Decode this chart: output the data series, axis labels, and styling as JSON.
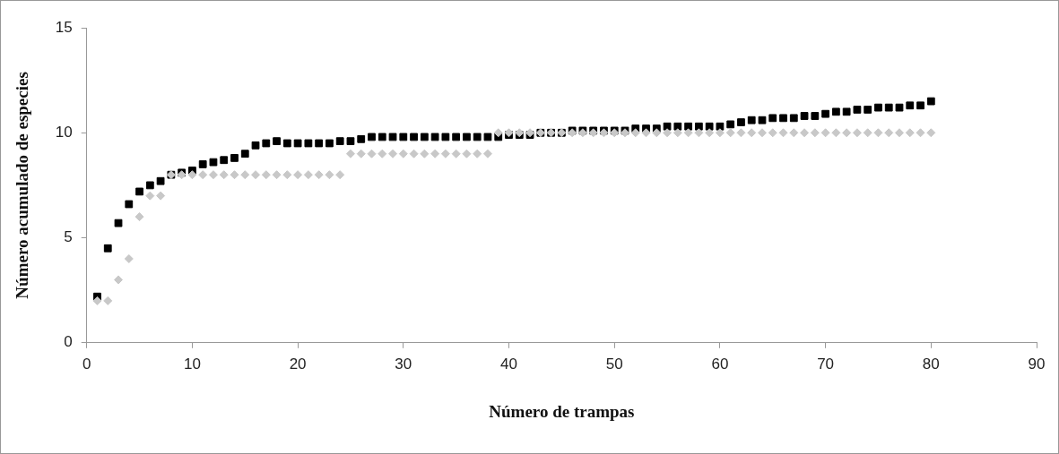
{
  "chart_data": {
    "type": "scatter",
    "xlabel": "Número de trampas",
    "ylabel": "Número acumulado de especies",
    "x": [
      1,
      2,
      3,
      4,
      5,
      6,
      7,
      8,
      9,
      10,
      11,
      12,
      13,
      14,
      15,
      16,
      17,
      18,
      19,
      20,
      21,
      22,
      23,
      24,
      25,
      26,
      27,
      28,
      29,
      30,
      31,
      32,
      33,
      34,
      35,
      36,
      37,
      38,
      39,
      40,
      41,
      42,
      43,
      44,
      45,
      46,
      47,
      48,
      49,
      50,
      51,
      52,
      53,
      54,
      55,
      56,
      57,
      58,
      59,
      60,
      61,
      62,
      63,
      64,
      65,
      66,
      67,
      68,
      69,
      70,
      71,
      72,
      73,
      74,
      75,
      76,
      77,
      78,
      79,
      80
    ],
    "series": [
      {
        "color": "#c8c8c8",
        "marker": "diamond",
        "values": [
          2,
          2,
          3,
          4,
          6,
          7,
          7,
          8,
          8,
          8,
          8,
          8,
          8,
          8,
          8,
          8,
          8,
          8,
          8,
          8,
          8,
          8,
          8,
          8,
          9,
          9,
          9,
          9,
          9,
          9,
          9,
          9,
          9,
          9,
          9,
          9,
          9,
          9,
          10,
          10,
          10,
          10,
          10,
          10,
          10,
          10,
          10,
          10,
          10,
          10,
          10,
          10,
          10,
          10,
          10,
          10,
          10,
          10,
          10,
          10,
          10,
          10,
          10,
          10,
          10,
          10,
          10,
          10,
          10,
          10,
          10,
          10,
          10,
          10,
          10,
          10,
          10,
          10,
          10,
          10
        ]
      },
      {
        "color": "#000000",
        "marker": "square",
        "values": [
          2.2,
          4.5,
          5.7,
          6.6,
          7.2,
          7.5,
          7.7,
          8.0,
          8.1,
          8.2,
          8.5,
          8.6,
          8.7,
          8.8,
          9.0,
          9.4,
          9.5,
          9.6,
          9.5,
          9.5,
          9.5,
          9.5,
          9.5,
          9.6,
          9.6,
          9.7,
          9.8,
          9.8,
          9.8,
          9.8,
          9.8,
          9.8,
          9.8,
          9.8,
          9.8,
          9.8,
          9.8,
          9.8,
          9.8,
          9.9,
          9.9,
          9.9,
          10.0,
          10.0,
          10.0,
          10.1,
          10.1,
          10.1,
          10.1,
          10.1,
          10.1,
          10.2,
          10.2,
          10.2,
          10.3,
          10.3,
          10.3,
          10.3,
          10.3,
          10.3,
          10.4,
          10.5,
          10.6,
          10.6,
          10.7,
          10.7,
          10.7,
          10.8,
          10.8,
          10.9,
          11.0,
          11.0,
          11.1,
          11.1,
          11.2,
          11.2,
          11.2,
          11.3,
          11.3,
          11.5
        ]
      }
    ],
    "xlim": [
      0,
      90
    ],
    "xticks": [
      0,
      10,
      20,
      30,
      40,
      50,
      60,
      70,
      80,
      90
    ],
    "ylim": [
      0,
      15
    ],
    "yticks": [
      0,
      5,
      10,
      15
    ],
    "grid": false,
    "legend": false
  }
}
